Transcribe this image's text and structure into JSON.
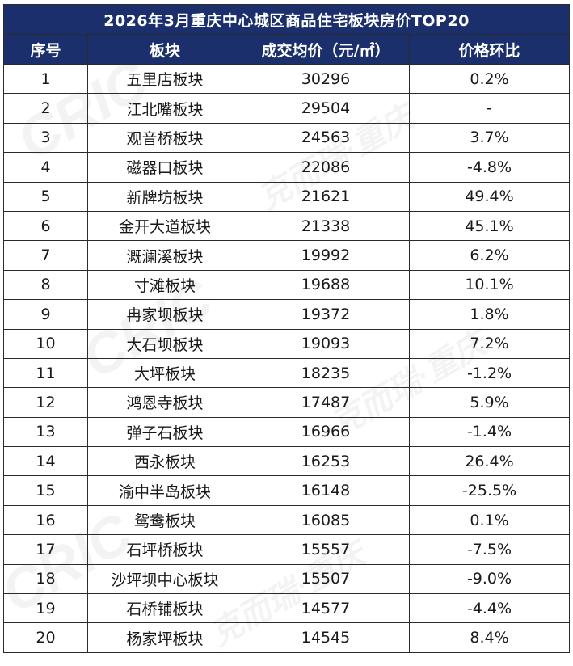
{
  "table": {
    "title": "2026年3月重庆中心城区商品住宅板块房价TOP20",
    "headers": [
      "序号",
      "板块",
      "成交均价（元/㎡）",
      "价格环比"
    ],
    "rows": [
      {
        "rank": "1",
        "district": "五里店板块",
        "price": "30296",
        "change": "0.2%",
        "dir": "pos"
      },
      {
        "rank": "2",
        "district": "江北嘴板块",
        "price": "29504",
        "change": "-",
        "dir": "flat"
      },
      {
        "rank": "3",
        "district": "观音桥板块",
        "price": "24563",
        "change": "3.7%",
        "dir": "pos"
      },
      {
        "rank": "4",
        "district": "磁器口板块",
        "price": "22086",
        "change": "-4.8%",
        "dir": "neg"
      },
      {
        "rank": "5",
        "district": "新牌坊板块",
        "price": "21621",
        "change": "49.4%",
        "dir": "pos"
      },
      {
        "rank": "6",
        "district": "金开大道板块",
        "price": "21338",
        "change": "45.1%",
        "dir": "pos"
      },
      {
        "rank": "7",
        "district": "溉澜溪板块",
        "price": "19992",
        "change": "6.2%",
        "dir": "pos"
      },
      {
        "rank": "8",
        "district": "寸滩板块",
        "price": "19688",
        "change": "10.1%",
        "dir": "pos"
      },
      {
        "rank": "9",
        "district": "冉家坝板块",
        "price": "19372",
        "change": "1.8%",
        "dir": "pos"
      },
      {
        "rank": "10",
        "district": "大石坝板块",
        "price": "19093",
        "change": "7.2%",
        "dir": "pos"
      },
      {
        "rank": "11",
        "district": "大坪板块",
        "price": "18235",
        "change": "-1.2%",
        "dir": "neg"
      },
      {
        "rank": "12",
        "district": "鸿恩寺板块",
        "price": "17487",
        "change": "5.9%",
        "dir": "pos"
      },
      {
        "rank": "13",
        "district": "弹子石板块",
        "price": "16966",
        "change": "-1.4%",
        "dir": "neg"
      },
      {
        "rank": "14",
        "district": "西永板块",
        "price": "16253",
        "change": "26.4%",
        "dir": "pos"
      },
      {
        "rank": "15",
        "district": "渝中半岛板块",
        "price": "16148",
        "change": "-25.5%",
        "dir": "neg"
      },
      {
        "rank": "16",
        "district": "鸳鸯板块",
        "price": "16085",
        "change": "0.1%",
        "dir": "pos"
      },
      {
        "rank": "17",
        "district": "石坪桥板块",
        "price": "15557",
        "change": "-7.5%",
        "dir": "neg"
      },
      {
        "rank": "18",
        "district": "沙坪坝中心板块",
        "price": "15507",
        "change": "-9.0%",
        "dir": "neg"
      },
      {
        "rank": "19",
        "district": "石桥铺板块",
        "price": "14577",
        "change": "-4.4%",
        "dir": "neg"
      },
      {
        "rank": "20",
        "district": "杨家坪板块",
        "price": "14545",
        "change": "8.4%",
        "dir": "pos"
      }
    ]
  },
  "watermark": [
    "CRIC",
    "克而瑞·重庆"
  ],
  "colors": {
    "header_bg": "#1a2f6b",
    "positive": "#e8546a",
    "negative": "#5aab3c"
  },
  "chart_data": {
    "type": "table",
    "title": "2026年3月重庆中心城区商品住宅板块房价TOP20",
    "columns": [
      "序号",
      "板块",
      "成交均价（元/㎡）",
      "价格环比"
    ],
    "categories": [
      "五里店板块",
      "江北嘴板块",
      "观音桥板块",
      "磁器口板块",
      "新牌坊板块",
      "金开大道板块",
      "溉澜溪板块",
      "寸滩板块",
      "冉家坝板块",
      "大石坝板块",
      "大坪板块",
      "鸿恩寺板块",
      "弹子石板块",
      "西永板块",
      "渝中半岛板块",
      "鸳鸯板块",
      "石坪桥板块",
      "沙坪坝中心板块",
      "石桥铺板块",
      "杨家坪板块"
    ],
    "series": [
      {
        "name": "成交均价（元/㎡）",
        "values": [
          30296,
          29504,
          24563,
          22086,
          21621,
          21338,
          19992,
          19688,
          19372,
          19093,
          18235,
          17487,
          16966,
          16253,
          16148,
          16085,
          15557,
          15507,
          14577,
          14545
        ]
      },
      {
        "name": "价格环比",
        "values": [
          0.2,
          null,
          3.7,
          -4.8,
          49.4,
          45.1,
          6.2,
          10.1,
          1.8,
          7.2,
          -1.2,
          5.9,
          -1.4,
          26.4,
          -25.5,
          0.1,
          -7.5,
          -9.0,
          -4.4,
          8.4
        ]
      }
    ]
  }
}
